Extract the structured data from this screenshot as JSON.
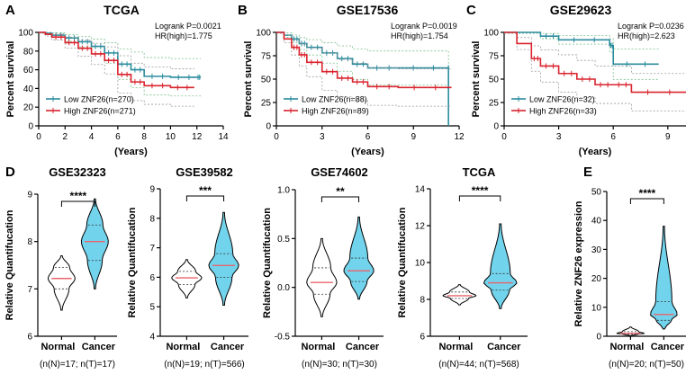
{
  "panels_top": [
    {
      "letter": "A",
      "title": "TCGA"
    },
    {
      "letter": "B",
      "title": "GSE17536"
    },
    {
      "letter": "C",
      "title": "GSE29623"
    }
  ],
  "panels_bottom": [
    {
      "letter": "D"
    },
    {
      "letter": "E"
    }
  ],
  "chart_data": [
    {
      "type": "line",
      "panel": "A",
      "title": "TCGA",
      "xlabel": "(Years)",
      "ylabel": "Percent survival",
      "xlim": [
        0,
        14
      ],
      "ylim": [
        0,
        100
      ],
      "xticks": [
        "0",
        "2",
        "4",
        "6",
        "8",
        "10",
        "12",
        "14"
      ],
      "yticks": [
        "0",
        "20",
        "40",
        "60",
        "80",
        "100"
      ],
      "logrank": "Logrank P=0.0021",
      "hr": "HR(high)=1.775",
      "series": [
        {
          "name": "Low ZNF26(n=270)",
          "color": "#2b8c9e",
          "points": [
            [
              0,
              100
            ],
            [
              0.5,
              99
            ],
            [
              1,
              97
            ],
            [
              2,
              94
            ],
            [
              3,
              90
            ],
            [
              4,
              85
            ],
            [
              5,
              78
            ],
            [
              6,
              66
            ],
            [
              7,
              60
            ],
            [
              8,
              53
            ],
            [
              10,
              52
            ],
            [
              12,
              52
            ],
            [
              12.3,
              52
            ]
          ]
        },
        {
          "name": "High ZNF26(n=271)",
          "color": "#d9232d",
          "points": [
            [
              0,
              100
            ],
            [
              0.5,
              98
            ],
            [
              1,
              95
            ],
            [
              2,
              89
            ],
            [
              3,
              83
            ],
            [
              4,
              77
            ],
            [
              5,
              70
            ],
            [
              6,
              55
            ],
            [
              7,
              47
            ],
            [
              8,
              43
            ],
            [
              10,
              41
            ],
            [
              11.8,
              41
            ]
          ]
        }
      ]
    },
    {
      "type": "line",
      "panel": "B",
      "title": "GSE17536",
      "xlabel": "(Years)",
      "ylabel": "Percent survival",
      "xlim": [
        0,
        12
      ],
      "ylim": [
        0,
        100
      ],
      "xticks": [
        "0",
        "3",
        "6",
        "9",
        "12"
      ],
      "yticks": [
        "0",
        "25",
        "50",
        "75",
        "100"
      ],
      "logrank": "Logrank P=0.0019",
      "hr": "HR(high)=1.754",
      "series": [
        {
          "name": "Low ZNF26(n=88)",
          "color": "#2b8c9e",
          "points": [
            [
              0,
              100
            ],
            [
              0.5,
              97
            ],
            [
              1,
              93
            ],
            [
              1.5,
              88
            ],
            [
              2,
              84
            ],
            [
              3,
              78
            ],
            [
              4,
              72
            ],
            [
              5,
              66
            ],
            [
              6,
              62
            ],
            [
              8,
              62
            ],
            [
              11.3,
              62
            ],
            [
              11.3,
              0
            ]
          ]
        },
        {
          "name": "High ZNF26(n=89)",
          "color": "#d9232d",
          "points": [
            [
              0,
              100
            ],
            [
              0.5,
              93
            ],
            [
              1,
              84
            ],
            [
              1.5,
              76
            ],
            [
              2,
              68
            ],
            [
              3,
              58
            ],
            [
              4,
              51
            ],
            [
              5,
              47
            ],
            [
              6,
              42
            ],
            [
              8,
              41
            ],
            [
              11.5,
              41
            ]
          ]
        }
      ]
    },
    {
      "type": "line",
      "panel": "C",
      "title": "GSE29623",
      "xlabel": "(Years)",
      "ylabel": "Percent survival",
      "xlim": [
        0,
        10
      ],
      "ylim": [
        0,
        100
      ],
      "xticks": [
        "0",
        "3",
        "6",
        "9"
      ],
      "yticks": [
        "0",
        "25",
        "50",
        "75",
        "100"
      ],
      "logrank": "Logrank P=0.0236",
      "hr": "HR(high)=2.623",
      "series": [
        {
          "name": "Low ZNF26(n=32)",
          "color": "#2b8c9e",
          "points": [
            [
              0,
              100
            ],
            [
              1,
              100
            ],
            [
              2,
              96
            ],
            [
              3,
              92
            ],
            [
              5.8,
              86
            ],
            [
              6,
              66
            ],
            [
              8.5,
              66
            ]
          ]
        },
        {
          "name": "High ZNF26(n=33)",
          "color": "#d9232d",
          "points": [
            [
              0,
              100
            ],
            [
              0.7,
              88
            ],
            [
              1.5,
              72
            ],
            [
              2,
              64
            ],
            [
              3,
              56
            ],
            [
              4,
              50
            ],
            [
              5,
              44
            ],
            [
              6,
              44
            ],
            [
              7,
              36
            ],
            [
              10,
              36
            ]
          ]
        }
      ]
    },
    {
      "type": "violin",
      "panel": "D",
      "title": "GSE32323",
      "ylabel": "Relative Quantifucation",
      "ylim": [
        6,
        9
      ],
      "yticks": [
        "6",
        "7",
        "8",
        "9"
      ],
      "categories": [
        "Normal",
        "Cancer"
      ],
      "significance": "****",
      "n_label": "(n(N)=17; n(T)=17)",
      "groups": [
        {
          "name": "Normal",
          "color": "#ffffff",
          "min": 6.55,
          "q1": 7.0,
          "median": 7.22,
          "q3": 7.45,
          "max": 7.7
        },
        {
          "name": "Cancer",
          "color": "#72d3ec",
          "min": 7.0,
          "q1": 7.6,
          "median": 8.0,
          "q3": 8.35,
          "max": 8.9
        }
      ]
    },
    {
      "type": "violin",
      "panel": "D",
      "title": "GSE39582",
      "ylabel": "Relative Quantifucation",
      "ylim": [
        4,
        9
      ],
      "yticks": [
        "4",
        "5",
        "6",
        "7",
        "8",
        "9"
      ],
      "categories": [
        "Normal",
        "Cancer"
      ],
      "significance": "***",
      "n_label": "(n(N)=19; n(T)=566)",
      "groups": [
        {
          "name": "Normal",
          "color": "#ffffff",
          "min": 5.3,
          "q1": 5.75,
          "median": 5.98,
          "q3": 6.2,
          "max": 6.6
        },
        {
          "name": "Cancer",
          "color": "#72d3ec",
          "min": 5.05,
          "q1": 6.0,
          "median": 6.4,
          "q3": 6.8,
          "max": 8.2
        }
      ]
    },
    {
      "type": "violin",
      "panel": "D",
      "title": "GSE74602",
      "ylabel": "Relative Quantifucation",
      "ylim": [
        -0.5,
        1.0
      ],
      "yticks": [
        "-0.5",
        "0.0",
        "0.5",
        "1.0"
      ],
      "categories": [
        "Normal",
        "Cancer"
      ],
      "significance": "**",
      "n_label": "(n(N)=30; n(T)=30)",
      "groups": [
        {
          "name": "Normal",
          "color": "#ffffff",
          "min": -0.3,
          "q1": -0.07,
          "median": 0.05,
          "q3": 0.2,
          "max": 0.5
        },
        {
          "name": "Cancer",
          "color": "#72d3ec",
          "min": -0.12,
          "q1": 0.06,
          "median": 0.17,
          "q3": 0.3,
          "max": 0.72
        }
      ]
    },
    {
      "type": "violin",
      "panel": "D",
      "title": "TCGA",
      "ylabel": "Relative Quantifucation",
      "ylim": [
        6,
        14
      ],
      "yticks": [
        "6",
        "8",
        "10",
        "12",
        "14"
      ],
      "categories": [
        "Normal",
        "Cancer"
      ],
      "significance": "****",
      "n_label": "(n(N)=44; n(T)=568)",
      "groups": [
        {
          "name": "Normal",
          "color": "#ffffff",
          "min": 7.7,
          "q1": 8.05,
          "median": 8.2,
          "q3": 8.4,
          "max": 8.8
        },
        {
          "name": "Cancer",
          "color": "#72d3ec",
          "min": 7.5,
          "q1": 8.5,
          "median": 8.9,
          "q3": 9.4,
          "max": 12.1
        }
      ]
    },
    {
      "type": "violin",
      "panel": "E",
      "title": "",
      "ylabel": "Relative ZNF26  expression",
      "ylim": [
        0,
        50
      ],
      "yticks": [
        "0",
        "10",
        "20",
        "30",
        "40",
        "50"
      ],
      "categories": [
        "Normal",
        "Cancer"
      ],
      "significance": "****",
      "n_label": "(n(N)=20; n(T)=50)",
      "groups": [
        {
          "name": "Normal",
          "color": "#ffffff",
          "min": 0.2,
          "q1": 0.7,
          "median": 1.0,
          "q3": 1.6,
          "max": 3.2
        },
        {
          "name": "Cancer",
          "color": "#72d3ec",
          "min": 2.5,
          "q1": 5.5,
          "median": 7.5,
          "q3": 12.0,
          "max": 38.0
        }
      ]
    }
  ]
}
